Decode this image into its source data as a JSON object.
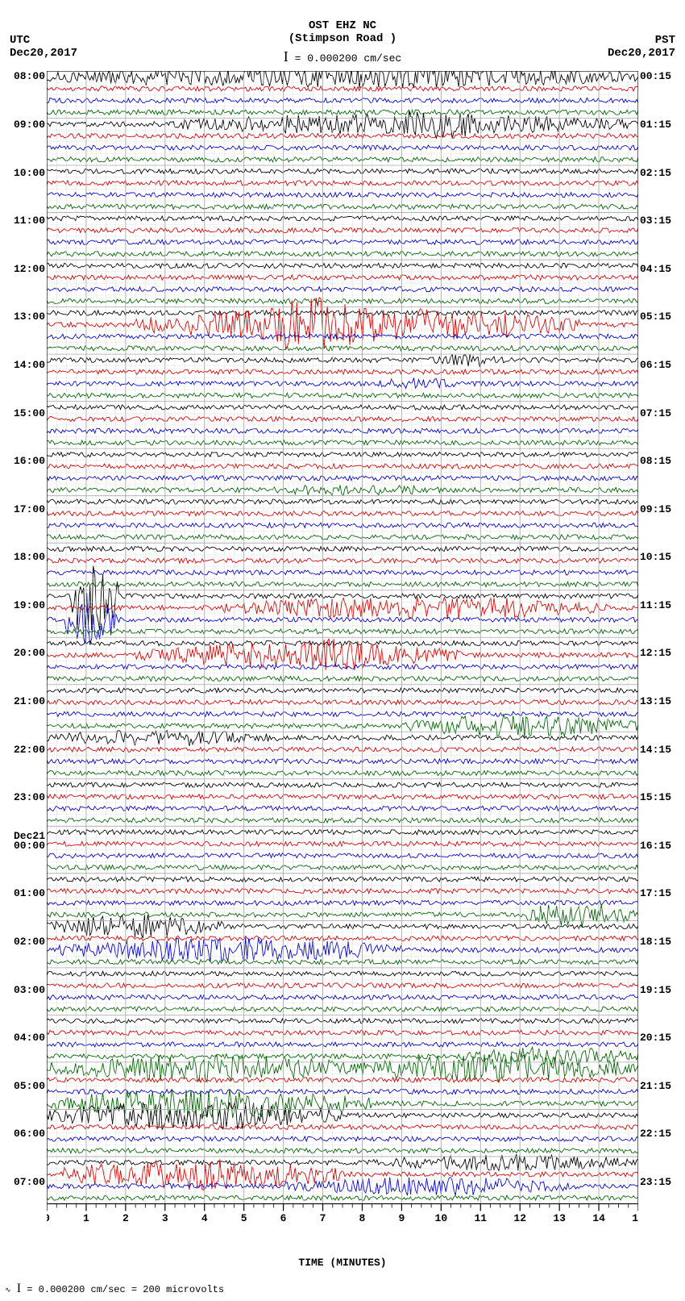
{
  "header": {
    "station_code": "OST EHZ NC",
    "station_name": "(Stimpson Road )",
    "scale_text": "= 0.000200 cm/sec"
  },
  "tz_left": "UTC",
  "tz_right": "PST",
  "date_left": "Dec20,2017",
  "date_right": "Dec20,2017",
  "x_axis_label": "TIME (MINUTES)",
  "footer_text": "= 0.000200 cm/sec =    200 microvolts",
  "plot": {
    "background_color": "#ffffff",
    "grid_color_major": "#a8a8a8",
    "grid_color_minor": "#dddddd",
    "x_minutes": 15,
    "x_major_every": 1,
    "x_minor_per_major": 4,
    "trace_colors": [
      "#000000",
      "#d40000",
      "#0000c8",
      "#006400"
    ],
    "n_traces": 96,
    "left_labels": [
      {
        "i": 0,
        "text": "08:00"
      },
      {
        "i": 4,
        "text": "09:00"
      },
      {
        "i": 8,
        "text": "10:00"
      },
      {
        "i": 12,
        "text": "11:00"
      },
      {
        "i": 16,
        "text": "12:00"
      },
      {
        "i": 20,
        "text": "13:00"
      },
      {
        "i": 24,
        "text": "14:00"
      },
      {
        "i": 28,
        "text": "15:00"
      },
      {
        "i": 32,
        "text": "16:00"
      },
      {
        "i": 36,
        "text": "17:00"
      },
      {
        "i": 40,
        "text": "18:00"
      },
      {
        "i": 44,
        "text": "19:00"
      },
      {
        "i": 48,
        "text": "20:00"
      },
      {
        "i": 52,
        "text": "21:00"
      },
      {
        "i": 56,
        "text": "22:00"
      },
      {
        "i": 60,
        "text": "23:00"
      },
      {
        "i": 64,
        "text": "Dec21\n00:00"
      },
      {
        "i": 68,
        "text": "01:00"
      },
      {
        "i": 72,
        "text": "02:00"
      },
      {
        "i": 76,
        "text": "03:00"
      },
      {
        "i": 80,
        "text": "04:00"
      },
      {
        "i": 84,
        "text": "05:00"
      },
      {
        "i": 88,
        "text": "06:00"
      },
      {
        "i": 92,
        "text": "07:00"
      }
    ],
    "right_labels": [
      {
        "i": 0,
        "text": "00:15"
      },
      {
        "i": 4,
        "text": "01:15"
      },
      {
        "i": 8,
        "text": "02:15"
      },
      {
        "i": 12,
        "text": "03:15"
      },
      {
        "i": 16,
        "text": "04:15"
      },
      {
        "i": 20,
        "text": "05:15"
      },
      {
        "i": 24,
        "text": "06:15"
      },
      {
        "i": 28,
        "text": "07:15"
      },
      {
        "i": 32,
        "text": "08:15"
      },
      {
        "i": 36,
        "text": "09:15"
      },
      {
        "i": 40,
        "text": "10:15"
      },
      {
        "i": 44,
        "text": "11:15"
      },
      {
        "i": 48,
        "text": "12:15"
      },
      {
        "i": 52,
        "text": "13:15"
      },
      {
        "i": 56,
        "text": "14:15"
      },
      {
        "i": 60,
        "text": "15:15"
      },
      {
        "i": 64,
        "text": "16:15"
      },
      {
        "i": 68,
        "text": "17:15"
      },
      {
        "i": 72,
        "text": "18:15"
      },
      {
        "i": 76,
        "text": "19:15"
      },
      {
        "i": 80,
        "text": "20:15"
      },
      {
        "i": 84,
        "text": "21:15"
      },
      {
        "i": 88,
        "text": "22:15"
      },
      {
        "i": 92,
        "text": "23:15"
      }
    ],
    "events": [
      {
        "trace": 0,
        "start": 0.0,
        "end": 1.0,
        "amp": 2.2,
        "dense": true
      },
      {
        "trace": 4,
        "start": 0.2,
        "end": 1.0,
        "amp": 2.0,
        "dense": true
      },
      {
        "trace": 4,
        "start": 0.55,
        "end": 0.75,
        "amp": 3.0,
        "dense": true
      },
      {
        "trace": 21,
        "start": 0.15,
        "end": 0.9,
        "amp": 3.2,
        "dense": true
      },
      {
        "trace": 21,
        "start": 0.35,
        "end": 0.55,
        "amp": 5.5,
        "dense": true
      },
      {
        "trace": 24,
        "start": 0.65,
        "end": 0.78,
        "amp": 1.6,
        "dense": false
      },
      {
        "trace": 26,
        "start": 0.55,
        "end": 0.7,
        "amp": 1.5,
        "dense": false
      },
      {
        "trace": 35,
        "start": 0.35,
        "end": 0.7,
        "amp": 1.4,
        "dense": false
      },
      {
        "trace": 45,
        "start": 0.3,
        "end": 0.95,
        "amp": 2.2,
        "dense": true
      },
      {
        "trace": 44,
        "start": 0.03,
        "end": 0.12,
        "amp": 4.0,
        "dense": false,
        "spikes": true
      },
      {
        "trace": 46,
        "start": 0.03,
        "end": 0.12,
        "amp": 3.0,
        "dense": false,
        "spikes": true
      },
      {
        "trace": 49,
        "start": 0.15,
        "end": 0.7,
        "amp": 2.4,
        "dense": true
      },
      {
        "trace": 49,
        "start": 0.4,
        "end": 0.58,
        "amp": 3.2,
        "dense": true
      },
      {
        "trace": 55,
        "start": 0.6,
        "end": 1.0,
        "amp": 2.2,
        "dense": true
      },
      {
        "trace": 56,
        "start": 0.0,
        "end": 0.4,
        "amp": 1.6,
        "dense": true
      },
      {
        "trace": 71,
        "start": 0.8,
        "end": 1.0,
        "amp": 2.4,
        "dense": true
      },
      {
        "trace": 72,
        "start": 0.0,
        "end": 0.3,
        "amp": 2.2,
        "dense": true
      },
      {
        "trace": 74,
        "start": 0.02,
        "end": 0.6,
        "amp": 2.4,
        "dense": true
      },
      {
        "trace": 83,
        "start": 0.7,
        "end": 1.0,
        "amp": 1.8,
        "dense": true
      },
      {
        "trace": 83,
        "start": 0.0,
        "end": 0.55,
        "amp": 2.6,
        "dense": true,
        "override_trace": 84,
        "color_override": "#006400"
      },
      {
        "trace": 84,
        "start": 0.5,
        "end": 1.0,
        "amp": 2.6,
        "dense": true
      },
      {
        "trace": 87,
        "start": 0.0,
        "end": 0.55,
        "amp": 2.8,
        "dense": true
      },
      {
        "trace": 88,
        "start": 0.0,
        "end": 0.5,
        "amp": 2.8,
        "dense": true
      },
      {
        "trace": 92,
        "start": 0.55,
        "end": 1.0,
        "amp": 1.6,
        "dense": true
      },
      {
        "trace": 93,
        "start": 0.02,
        "end": 0.5,
        "amp": 3.0,
        "dense": true
      },
      {
        "trace": 94,
        "start": 0.4,
        "end": 0.9,
        "amp": 1.8,
        "dense": true
      }
    ],
    "base_noise_amp": 0.6
  },
  "label_fontsize": 13,
  "header_fontsize": 14
}
